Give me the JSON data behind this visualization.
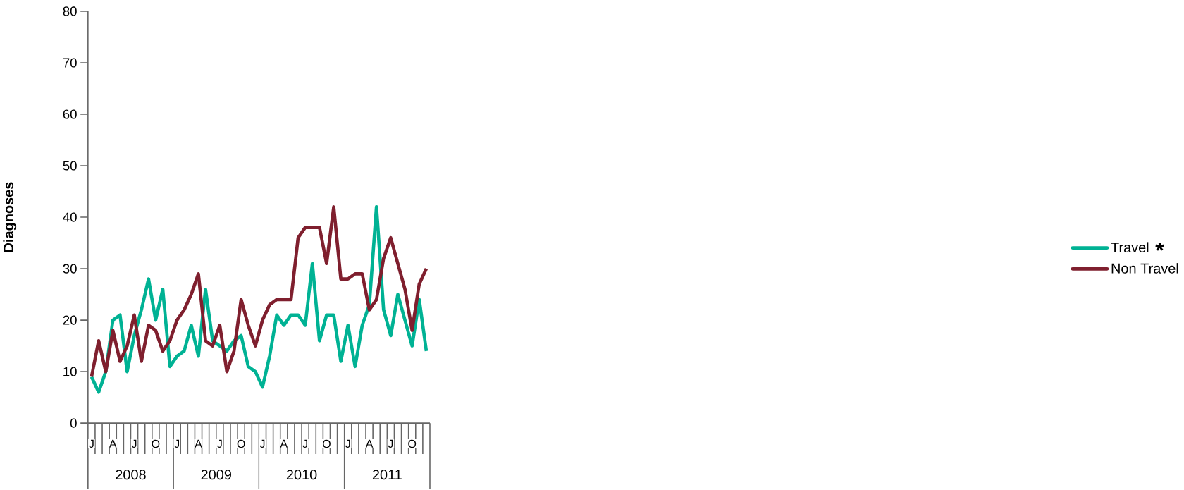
{
  "chart_data": {
    "type": "line",
    "categories": [
      "J",
      null,
      null,
      "A",
      null,
      null,
      "J",
      null,
      null,
      "O",
      null,
      null,
      "J",
      null,
      null,
      "A",
      null,
      null,
      "J",
      null,
      null,
      "O",
      null,
      null,
      "J",
      null,
      null,
      "A",
      null,
      null,
      "J",
      null,
      null,
      "O",
      null,
      null,
      "J",
      null,
      null,
      "A",
      null,
      null,
      "J",
      null,
      null,
      "O",
      null,
      null
    ],
    "series": [
      {
        "name": "Travel",
        "color": "#00b294",
        "values": [
          9,
          6,
          10,
          20,
          21,
          10,
          17,
          22,
          28,
          20,
          26,
          11,
          13,
          14,
          19,
          13,
          26,
          16,
          15,
          14,
          16,
          17,
          11,
          10,
          7,
          13,
          21,
          19,
          21,
          21,
          19,
          31,
          16,
          21,
          21,
          12,
          19,
          11,
          19,
          23,
          42,
          22,
          17,
          25,
          20,
          15,
          24,
          14
        ]
      },
      {
        "name": "Non Travel",
        "color": "#7f1f2e",
        "values": [
          9,
          16,
          10,
          18,
          12,
          15,
          21,
          12,
          19,
          18,
          14,
          16,
          20,
          22,
          25,
          29,
          16,
          15,
          19,
          10,
          14,
          24,
          19,
          15,
          20,
          23,
          24,
          24,
          24,
          36,
          38,
          38,
          38,
          31,
          42,
          28,
          28,
          29,
          29,
          22,
          24,
          32,
          36,
          31,
          26,
          18,
          27,
          30
        ]
      }
    ],
    "ylabel": "Diagnoses",
    "ylim": [
      0,
      80
    ],
    "yticks": [
      0,
      10,
      20,
      30,
      40,
      50,
      60,
      70,
      80
    ],
    "legend": "right",
    "annotations": [
      "2008",
      "2009",
      "2010",
      "2011",
      "*"
    ]
  }
}
